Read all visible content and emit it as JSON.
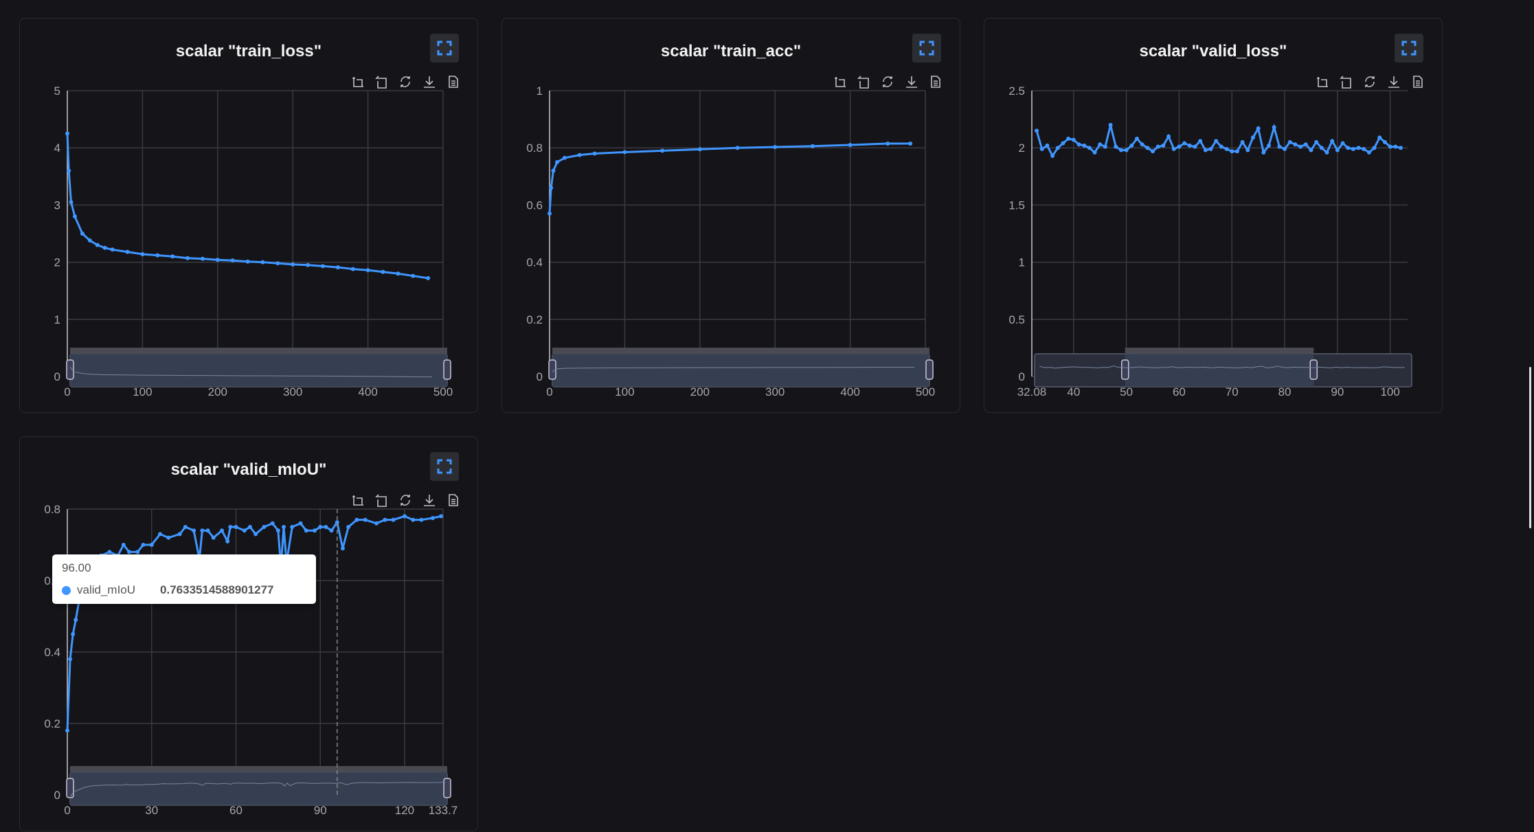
{
  "colors": {
    "line": "#4096ff",
    "background": "#141419",
    "grid": "#3a3a42",
    "axis_text": "#a8a8b0",
    "title": "#f2f2f2"
  },
  "toolbar_icons": [
    "zoom-select-icon",
    "zoom-reset-icon",
    "restore-icon",
    "download-icon",
    "data-view-icon"
  ],
  "chart_data": [
    {
      "type": "line",
      "title": "scalar \"train_loss\"",
      "xlim": [
        0,
        500
      ],
      "ylim": [
        0,
        5
      ],
      "xticks": [
        0,
        100,
        200,
        300,
        400,
        500
      ],
      "yticks": [
        0,
        1,
        2,
        3,
        4,
        5
      ],
      "xtick_labels": [
        "0",
        "100",
        "200",
        "300",
        "400",
        "500"
      ],
      "grid": true,
      "zoom_range_percent": [
        0,
        100
      ],
      "x": [
        0,
        2,
        5,
        10,
        20,
        30,
        40,
        50,
        60,
        80,
        100,
        120,
        140,
        160,
        180,
        200,
        220,
        240,
        260,
        280,
        300,
        320,
        340,
        360,
        380,
        400,
        420,
        440,
        460,
        480
      ],
      "y": [
        4.25,
        3.6,
        3.05,
        2.8,
        2.5,
        2.38,
        2.3,
        2.25,
        2.22,
        2.18,
        2.14,
        2.12,
        2.1,
        2.07,
        2.06,
        2.04,
        2.03,
        2.01,
        2.0,
        1.98,
        1.96,
        1.95,
        1.93,
        1.91,
        1.88,
        1.86,
        1.83,
        1.8,
        1.76,
        1.72
      ]
    },
    {
      "type": "line",
      "title": "scalar \"train_acc\"",
      "xlim": [
        0,
        500
      ],
      "ylim": [
        0,
        1
      ],
      "xticks": [
        0,
        100,
        200,
        300,
        400,
        500
      ],
      "yticks": [
        0,
        0.2,
        0.4,
        0.6,
        0.8,
        1
      ],
      "xtick_labels": [
        "0",
        "100",
        "200",
        "300",
        "400",
        "500"
      ],
      "grid": true,
      "zoom_range_percent": [
        0,
        100
      ],
      "x": [
        0,
        2,
        5,
        10,
        20,
        40,
        60,
        100,
        150,
        200,
        250,
        300,
        350,
        400,
        450,
        480
      ],
      "y": [
        0.57,
        0.66,
        0.72,
        0.75,
        0.765,
        0.775,
        0.78,
        0.785,
        0.79,
        0.795,
        0.8,
        0.803,
        0.806,
        0.81,
        0.815,
        0.815
      ]
    },
    {
      "type": "line",
      "title": "scalar \"valid_loss\"",
      "xlim": [
        32.08,
        103.3
      ],
      "ylim": [
        0,
        2.5
      ],
      "xticks": [
        32.08,
        40,
        50,
        60,
        70,
        80,
        90,
        100
      ],
      "yticks": [
        0,
        0.5,
        1,
        1.5,
        2,
        2.5
      ],
      "xtick_labels": [
        "32.08",
        "40",
        "50",
        "60",
        "70",
        "80",
        "90",
        "100"
      ],
      "grid": true,
      "zoom_range_percent": [
        24,
        74
      ],
      "x": [
        33,
        34,
        35,
        36,
        37,
        38,
        39,
        40,
        41,
        42,
        43,
        44,
        45,
        46,
        47,
        48,
        49,
        50,
        51,
        52,
        53,
        54,
        55,
        56,
        57,
        58,
        59,
        60,
        61,
        62,
        63,
        64,
        65,
        66,
        67,
        68,
        69,
        70,
        71,
        72,
        73,
        74,
        75,
        76,
        77,
        78,
        79,
        80,
        81,
        82,
        83,
        84,
        85,
        86,
        87,
        88,
        89,
        90,
        91,
        92,
        93,
        94,
        95,
        96,
        97,
        98,
        99,
        100,
        101,
        102
      ],
      "y": [
        2.15,
        1.99,
        2.02,
        1.93,
        2.0,
        2.04,
        2.08,
        2.07,
        2.03,
        2.02,
        2.0,
        1.96,
        2.03,
        2.01,
        2.2,
        2.01,
        1.98,
        1.98,
        2.02,
        2.08,
        2.03,
        2.0,
        1.97,
        2.01,
        2.02,
        2.1,
        1.99,
        2.01,
        2.04,
        2.02,
        2.01,
        2.06,
        1.98,
        1.99,
        2.06,
        2.01,
        1.99,
        1.97,
        1.97,
        2.05,
        1.98,
        2.09,
        2.17,
        1.96,
        2.02,
        2.18,
        2.01,
        1.99,
        2.05,
        2.03,
        2.01,
        2.03,
        1.98,
        2.05,
        2.0,
        1.96,
        2.06,
        1.98,
        2.04,
        2.0,
        1.99,
        2.0,
        1.99,
        1.96,
        2.0,
        2.09,
        2.05,
        2.01,
        2.01,
        2.0
      ]
    },
    {
      "type": "line",
      "title": "scalar \"valid_mIoU\"",
      "xlim": [
        0,
        133.7
      ],
      "ylim": [
        0,
        0.8
      ],
      "xticks": [
        0,
        30,
        60,
        90,
        120,
        133.7
      ],
      "yticks": [
        0,
        0.2,
        0.4,
        0.6,
        0.8
      ],
      "xtick_labels": [
        "0",
        "30",
        "60",
        "90",
        "120",
        "133.7"
      ],
      "grid": true,
      "zoom_range_percent": [
        0,
        100
      ],
      "x": [
        0,
        1,
        2,
        3,
        5,
        8,
        10,
        12,
        15,
        18,
        20,
        22,
        25,
        27,
        30,
        33,
        36,
        40,
        42,
        45,
        47,
        48,
        50,
        52,
        55,
        57,
        58,
        60,
        63,
        65,
        67,
        70,
        73,
        75,
        76,
        77,
        78,
        80,
        83,
        85,
        88,
        90,
        92,
        94,
        96,
        98,
        100,
        103,
        106,
        110,
        113,
        116,
        120,
        123,
        126,
        130,
        133
      ],
      "y": [
        0.18,
        0.38,
        0.45,
        0.49,
        0.58,
        0.65,
        0.66,
        0.67,
        0.68,
        0.67,
        0.7,
        0.68,
        0.68,
        0.7,
        0.7,
        0.73,
        0.72,
        0.73,
        0.75,
        0.74,
        0.66,
        0.74,
        0.74,
        0.72,
        0.74,
        0.71,
        0.75,
        0.75,
        0.74,
        0.75,
        0.73,
        0.75,
        0.76,
        0.74,
        0.64,
        0.75,
        0.65,
        0.75,
        0.76,
        0.74,
        0.74,
        0.75,
        0.75,
        0.74,
        0.763,
        0.69,
        0.75,
        0.77,
        0.77,
        0.76,
        0.77,
        0.77,
        0.78,
        0.77,
        0.77,
        0.775,
        0.78
      ],
      "tooltip": {
        "x_label": "96.00",
        "series": "valid_mIoU",
        "value": "0.7633514588901277",
        "x": 96
      }
    }
  ]
}
